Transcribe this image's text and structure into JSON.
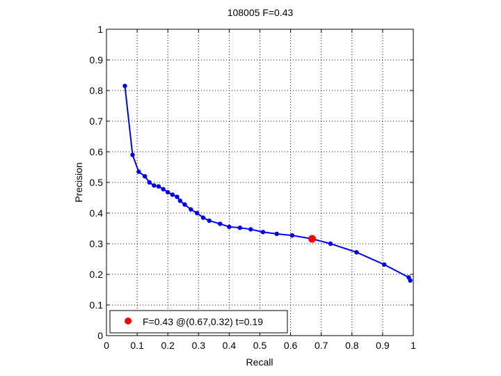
{
  "chart_data": {
    "type": "line",
    "title": "108005 F=0.43",
    "xlabel": "Recall",
    "ylabel": "Precision",
    "xlim": [
      0,
      1
    ],
    "ylim": [
      0,
      1
    ],
    "grid": true,
    "xticks": [
      "0",
      "0.1",
      "0.2",
      "0.3",
      "0.4",
      "0.5",
      "0.6",
      "0.7",
      "0.8",
      "0.9",
      "1"
    ],
    "yticks": [
      "0",
      "0.1",
      "0.2",
      "0.3",
      "0.4",
      "0.5",
      "0.6",
      "0.7",
      "0.8",
      "0.9",
      "1"
    ],
    "series": [
      {
        "color": "#0000ff",
        "points": [
          {
            "x": 0.06,
            "y": 0.815
          },
          {
            "x": 0.085,
            "y": 0.59
          },
          {
            "x": 0.105,
            "y": 0.535
          },
          {
            "x": 0.125,
            "y": 0.52
          },
          {
            "x": 0.14,
            "y": 0.5
          },
          {
            "x": 0.155,
            "y": 0.49
          },
          {
            "x": 0.17,
            "y": 0.487
          },
          {
            "x": 0.185,
            "y": 0.478
          },
          {
            "x": 0.2,
            "y": 0.468
          },
          {
            "x": 0.215,
            "y": 0.46
          },
          {
            "x": 0.23,
            "y": 0.453
          },
          {
            "x": 0.24,
            "y": 0.44
          },
          {
            "x": 0.255,
            "y": 0.428
          },
          {
            "x": 0.275,
            "y": 0.412
          },
          {
            "x": 0.295,
            "y": 0.4
          },
          {
            "x": 0.315,
            "y": 0.385
          },
          {
            "x": 0.335,
            "y": 0.375
          },
          {
            "x": 0.37,
            "y": 0.365
          },
          {
            "x": 0.4,
            "y": 0.355
          },
          {
            "x": 0.435,
            "y": 0.352
          },
          {
            "x": 0.47,
            "y": 0.347
          },
          {
            "x": 0.51,
            "y": 0.338
          },
          {
            "x": 0.555,
            "y": 0.332
          },
          {
            "x": 0.605,
            "y": 0.327
          },
          {
            "x": 0.67,
            "y": 0.316
          },
          {
            "x": 0.73,
            "y": 0.3
          },
          {
            "x": 0.815,
            "y": 0.272
          },
          {
            "x": 0.905,
            "y": 0.232
          },
          {
            "x": 0.985,
            "y": 0.19
          },
          {
            "x": 0.99,
            "y": 0.18
          }
        ]
      }
    ],
    "highlight": {
      "x": 0.67,
      "y": 0.316,
      "color": "#ff0000"
    },
    "legend": {
      "position": "bottom-left",
      "entries": [
        {
          "label": "F=0.43 @(0.67,0.32) t=0.19",
          "color": "#ff0000",
          "marker": "circle"
        }
      ]
    }
  }
}
